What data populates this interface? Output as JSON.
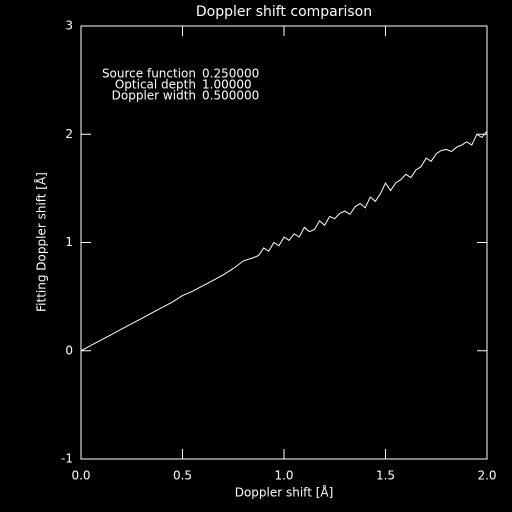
{
  "chart_data": {
    "type": "line",
    "title": "Doppler shift comparison",
    "x_label": "Doppler shift [Å]",
    "y_label": "Fitting Doppler shift [Å]",
    "annotations": [
      {
        "label": "Source function",
        "value": "0.250000"
      },
      {
        "label": "Optical depth",
        "value": "1.00000"
      },
      {
        "label": "Doppler width",
        "value": "0.500000"
      }
    ],
    "x": [
      0,
      0.05,
      0.1,
      0.15,
      0.2,
      0.25,
      0.3,
      0.35,
      0.4,
      0.45,
      0.5,
      0.55,
      0.6,
      0.65,
      0.7,
      0.75,
      0.8,
      0.85,
      0.875,
      0.9,
      0.925,
      0.95,
      0.975,
      1.0,
      1.025,
      1.05,
      1.075,
      1.1,
      1.125,
      1.15,
      1.175,
      1.2,
      1.225,
      1.25,
      1.275,
      1.3,
      1.325,
      1.35,
      1.375,
      1.4,
      1.425,
      1.45,
      1.475,
      1.5,
      1.525,
      1.55,
      1.575,
      1.6,
      1.625,
      1.65,
      1.675,
      1.7,
      1.725,
      1.75,
      1.775,
      1.8,
      1.825,
      1.85,
      1.875,
      1.9,
      1.925,
      1.95,
      1.975,
      2.0
    ],
    "series": [
      {
        "color": "#ffffff",
        "values": [
          0,
          0.05,
          0.1,
          0.15,
          0.2,
          0.25,
          0.3,
          0.35,
          0.4,
          0.45,
          0.51,
          0.55,
          0.6,
          0.65,
          0.7,
          0.76,
          0.83,
          0.86,
          0.88,
          0.95,
          0.92,
          1.0,
          0.97,
          1.05,
          1.02,
          1.08,
          1.05,
          1.14,
          1.1,
          1.12,
          1.2,
          1.16,
          1.24,
          1.22,
          1.27,
          1.29,
          1.26,
          1.33,
          1.36,
          1.32,
          1.42,
          1.38,
          1.45,
          1.55,
          1.48,
          1.55,
          1.58,
          1.63,
          1.6,
          1.67,
          1.7,
          1.78,
          1.75,
          1.82,
          1.85,
          1.86,
          1.84,
          1.88,
          1.9,
          1.93,
          1.9,
          2.0,
          1.97,
          2.03
        ]
      }
    ],
    "xlim": [
      0,
      2
    ],
    "ylim": [
      -1,
      3
    ],
    "xticks": [
      {
        "value": 0,
        "label": "0.0"
      },
      {
        "value": 0.5,
        "label": "0.5"
      },
      {
        "value": 1,
        "label": "1.0"
      },
      {
        "value": 1.5,
        "label": "1.5"
      },
      {
        "value": 2,
        "label": "2.0"
      }
    ],
    "yticks": [
      -1,
      0,
      1,
      2,
      3
    ]
  }
}
